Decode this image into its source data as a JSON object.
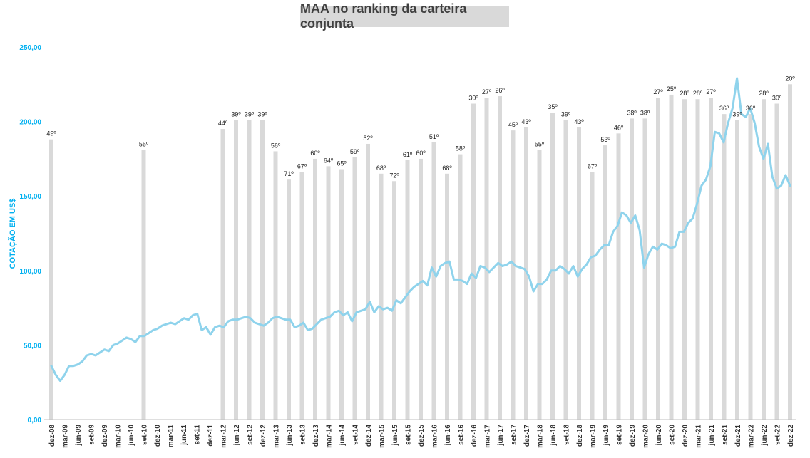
{
  "chart_data": {
    "type": "bar+line",
    "title": "MAA no ranking da carteira conjunta",
    "ylabel": "COTAÇÃO EM US$",
    "xlabel": "",
    "ylim": [
      0,
      250
    ],
    "y_ticks": [
      "0,00",
      "50,00",
      "100,00",
      "150,00",
      "200,00",
      "250,00"
    ],
    "x_tick_labels": [
      "dez-08",
      "mar-09",
      "jun-09",
      "set-09",
      "dez-09",
      "mar-10",
      "jun-10",
      "set-10",
      "dez-10",
      "mar-11",
      "jun-11",
      "set-11",
      "dez-11",
      "mar-12",
      "jun-12",
      "set-12",
      "dez-12",
      "mar-13",
      "jun-13",
      "set-13",
      "dez-13",
      "mar-14",
      "jun-14",
      "set-14",
      "dez-14",
      "mar-15",
      "jun-15",
      "set-15",
      "dez-15",
      "mar-16",
      "jun-16",
      "set-16",
      "dez-16",
      "mar-17",
      "jun-17",
      "set-17",
      "dez-17",
      "mar-18",
      "jun-18",
      "set-18",
      "dez-18",
      "mar-19",
      "jun-19",
      "set-19",
      "dez-19",
      "mar-20",
      "jun-20",
      "set-20",
      "dez-20",
      "mar-21",
      "jun-21",
      "set-21",
      "dez-21",
      "mar-22",
      "jun-22",
      "set-22",
      "dez-22"
    ],
    "bars": [
      {
        "x": "dez-08",
        "value": 188,
        "label": "49º"
      },
      {
        "x": "set-10",
        "value": 181,
        "label": "55º"
      },
      {
        "x": "mar-12",
        "value": 195,
        "label": "44º"
      },
      {
        "x": "jun-12",
        "value": 201,
        "label": "39º"
      },
      {
        "x": "set-12",
        "value": 201,
        "label": "39º"
      },
      {
        "x": "dez-12",
        "value": 201,
        "label": "39º"
      },
      {
        "x": "mar-13",
        "value": 180,
        "label": "56º"
      },
      {
        "x": "jun-13",
        "value": 161,
        "label": "71º"
      },
      {
        "x": "set-13",
        "value": 166,
        "label": "67º"
      },
      {
        "x": "dez-13",
        "value": 175,
        "label": "60º"
      },
      {
        "x": "mar-14",
        "value": 170,
        "label": "64º"
      },
      {
        "x": "jun-14",
        "value": 168,
        "label": "65º"
      },
      {
        "x": "set-14",
        "value": 176,
        "label": "59º"
      },
      {
        "x": "dez-14",
        "value": 185,
        "label": "52º"
      },
      {
        "x": "mar-15",
        "value": 165,
        "label": "68º"
      },
      {
        "x": "jun-15",
        "value": 160,
        "label": "72º"
      },
      {
        "x": "set-15",
        "value": 174,
        "label": "61º"
      },
      {
        "x": "dez-15",
        "value": 175,
        "label": "60º"
      },
      {
        "x": "mar-16",
        "value": 186,
        "label": "51º"
      },
      {
        "x": "jun-16",
        "value": 165,
        "label": "68º"
      },
      {
        "x": "set-16",
        "value": 178,
        "label": "58º"
      },
      {
        "x": "dez-16",
        "value": 212,
        "label": "30º"
      },
      {
        "x": "mar-17",
        "value": 216,
        "label": "27º"
      },
      {
        "x": "jun-17",
        "value": 217,
        "label": "26º"
      },
      {
        "x": "set-17",
        "value": 194,
        "label": "45º"
      },
      {
        "x": "dez-17",
        "value": 196,
        "label": "43º"
      },
      {
        "x": "mar-18",
        "value": 181,
        "label": "55º"
      },
      {
        "x": "jun-18",
        "value": 206,
        "label": "35º"
      },
      {
        "x": "set-18",
        "value": 201,
        "label": "39º"
      },
      {
        "x": "dez-18",
        "value": 196,
        "label": "43º"
      },
      {
        "x": "mar-19",
        "value": 166,
        "label": "67º"
      },
      {
        "x": "jun-19",
        "value": 184,
        "label": "53º"
      },
      {
        "x": "set-19",
        "value": 192,
        "label": "46º"
      },
      {
        "x": "dez-19",
        "value": 202,
        "label": "38º"
      },
      {
        "x": "mar-20",
        "value": 202,
        "label": "38º"
      },
      {
        "x": "jun-20",
        "value": 216,
        "label": "27º"
      },
      {
        "x": "set-20",
        "value": 218,
        "label": "25º"
      },
      {
        "x": "dez-20",
        "value": 215,
        "label": "28º"
      },
      {
        "x": "mar-21",
        "value": 215,
        "label": "28º"
      },
      {
        "x": "jun-21",
        "value": 216,
        "label": "27º"
      },
      {
        "x": "set-21",
        "value": 205,
        "label": "36º"
      },
      {
        "x": "dez-21",
        "value": 201,
        "label": "39º"
      },
      {
        "x": "mar-22",
        "value": 205,
        "label": "36º"
      },
      {
        "x": "jun-22",
        "value": 215,
        "label": "28º"
      },
      {
        "x": "set-22",
        "value": 212,
        "label": "30º"
      },
      {
        "x": "dez-22",
        "value": 225,
        "label": "20º"
      }
    ],
    "line": [
      36,
      30,
      26,
      30,
      36,
      36,
      37,
      39,
      43,
      44,
      43,
      45,
      47,
      46,
      50,
      51,
      53,
      55,
      54,
      52,
      56,
      56,
      58,
      60,
      61,
      63,
      64,
      65,
      64,
      66,
      68,
      67,
      70,
      71,
      60,
      62,
      57,
      62,
      63,
      62,
      66,
      67,
      67,
      68,
      69,
      68,
      65,
      64,
      63,
      65,
      68,
      69,
      68,
      67,
      67,
      62,
      63,
      65,
      60,
      61,
      64,
      67,
      68,
      69,
      72,
      73,
      70,
      72,
      66,
      72,
      73,
      74,
      79,
      72,
      76,
      74,
      75,
      73,
      80,
      78,
      82,
      86,
      89,
      91,
      93,
      90,
      102,
      96,
      103,
      105,
      106,
      94,
      94,
      93,
      91,
      98,
      95,
      103,
      102,
      99,
      102,
      105,
      103,
      104,
      106,
      103,
      102,
      101,
      96,
      86,
      91,
      91,
      94,
      100,
      100,
      103,
      101,
      98,
      103,
      96,
      101,
      104,
      109,
      110,
      114,
      117,
      117,
      126,
      130,
      139,
      137,
      132,
      137,
      127,
      102,
      111,
      116,
      114,
      118,
      117,
      115,
      116,
      126,
      126,
      132,
      135,
      145,
      157,
      161,
      170,
      193,
      192,
      186,
      199,
      209,
      229,
      205,
      203,
      209,
      199,
      183,
      175,
      185,
      163,
      155,
      157,
      164,
      157
    ],
    "colors": {
      "bars": "#d9d9d9",
      "line": "#8fd3ec",
      "axis_label": "#00b0f0",
      "tick": "#00b0f0",
      "title_bg": "#d9d9d9"
    },
    "grid": false,
    "legend": "none"
  }
}
